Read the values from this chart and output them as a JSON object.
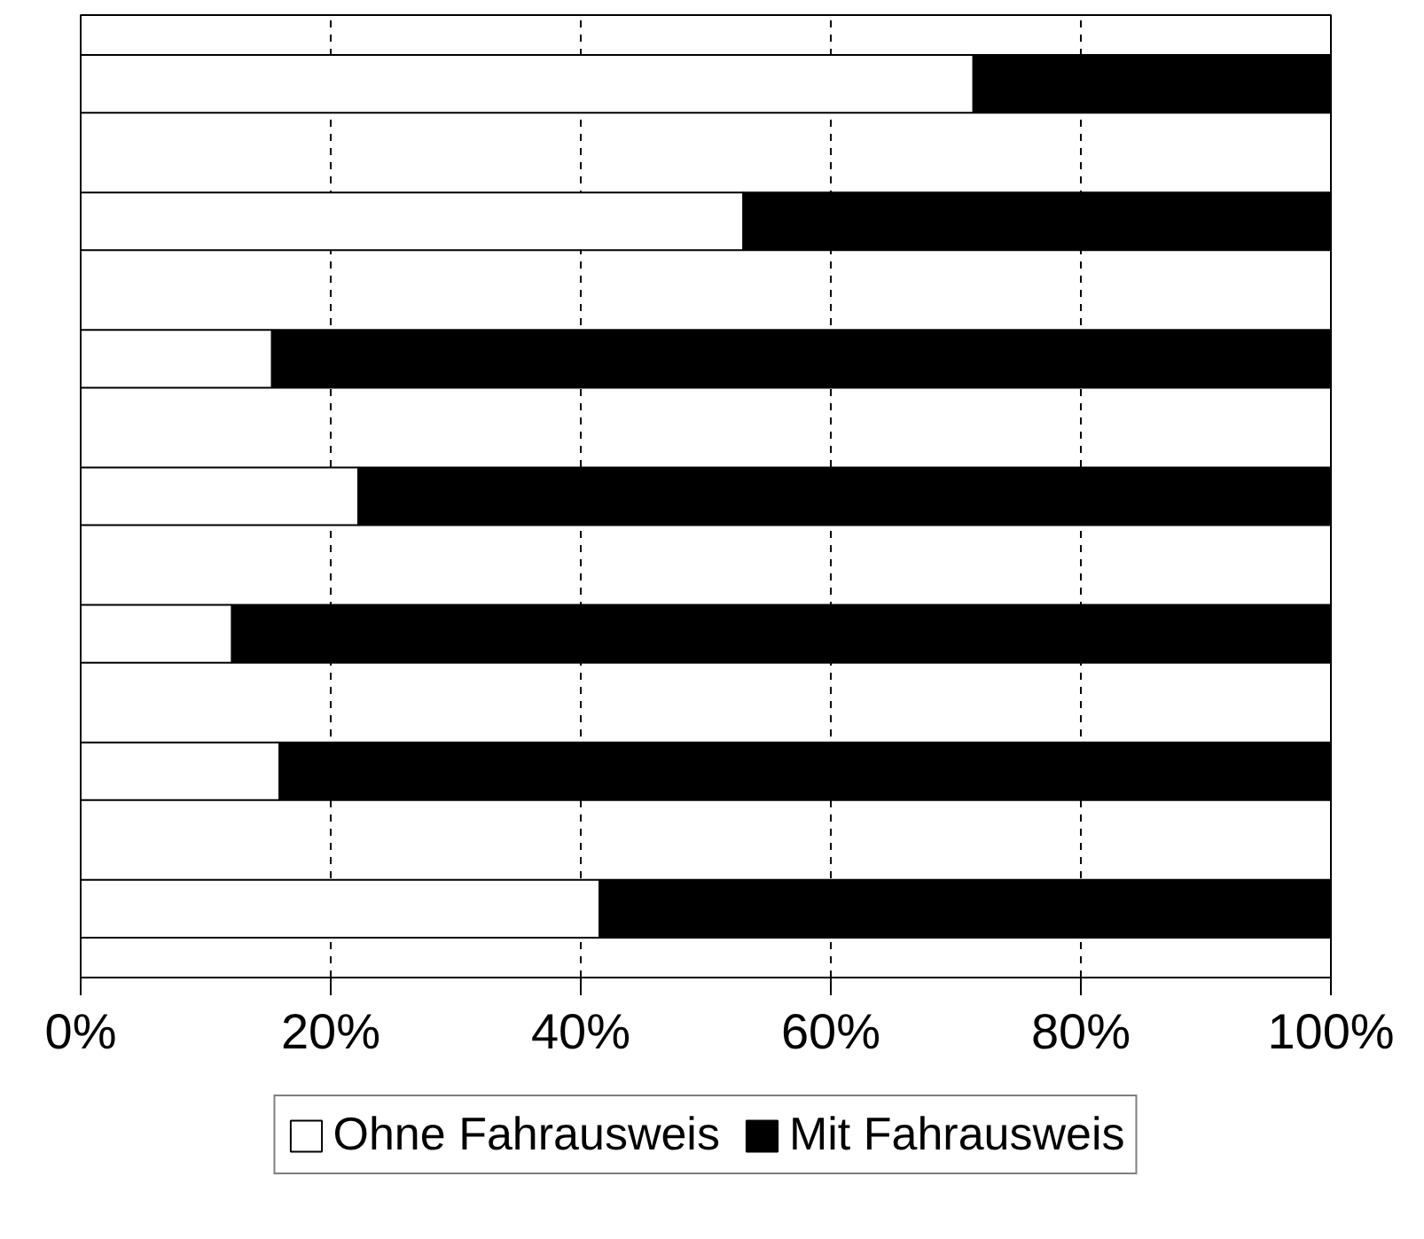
{
  "chart_data": {
    "type": "bar",
    "orientation": "horizontal",
    "stacked": true,
    "categories": [
      null,
      null,
      null,
      null,
      null,
      null,
      null
    ],
    "series": [
      {
        "name": "Ohne Fahrausweis",
        "color": "#ffffff",
        "values": [
          71.4,
          53.0,
          15.3,
          22.2,
          12.1,
          15.9,
          41.5
        ]
      },
      {
        "name": "Mit Fahrausweis",
        "color": "#000000",
        "values": [
          28.6,
          47.0,
          84.7,
          77.8,
          87.9,
          84.1,
          58.5
        ]
      }
    ],
    "xlim": [
      0,
      100
    ],
    "xticks": [
      {
        "value": 0,
        "label": "0%"
      },
      {
        "value": 20,
        "label": "20%"
      },
      {
        "value": 40,
        "label": "40%"
      },
      {
        "value": 60,
        "label": "60%"
      },
      {
        "value": 80,
        "label": "80%"
      },
      {
        "value": 100,
        "label": "100%"
      }
    ],
    "grid": "x",
    "legend": "bottom",
    "tick_labels": "x"
  }
}
